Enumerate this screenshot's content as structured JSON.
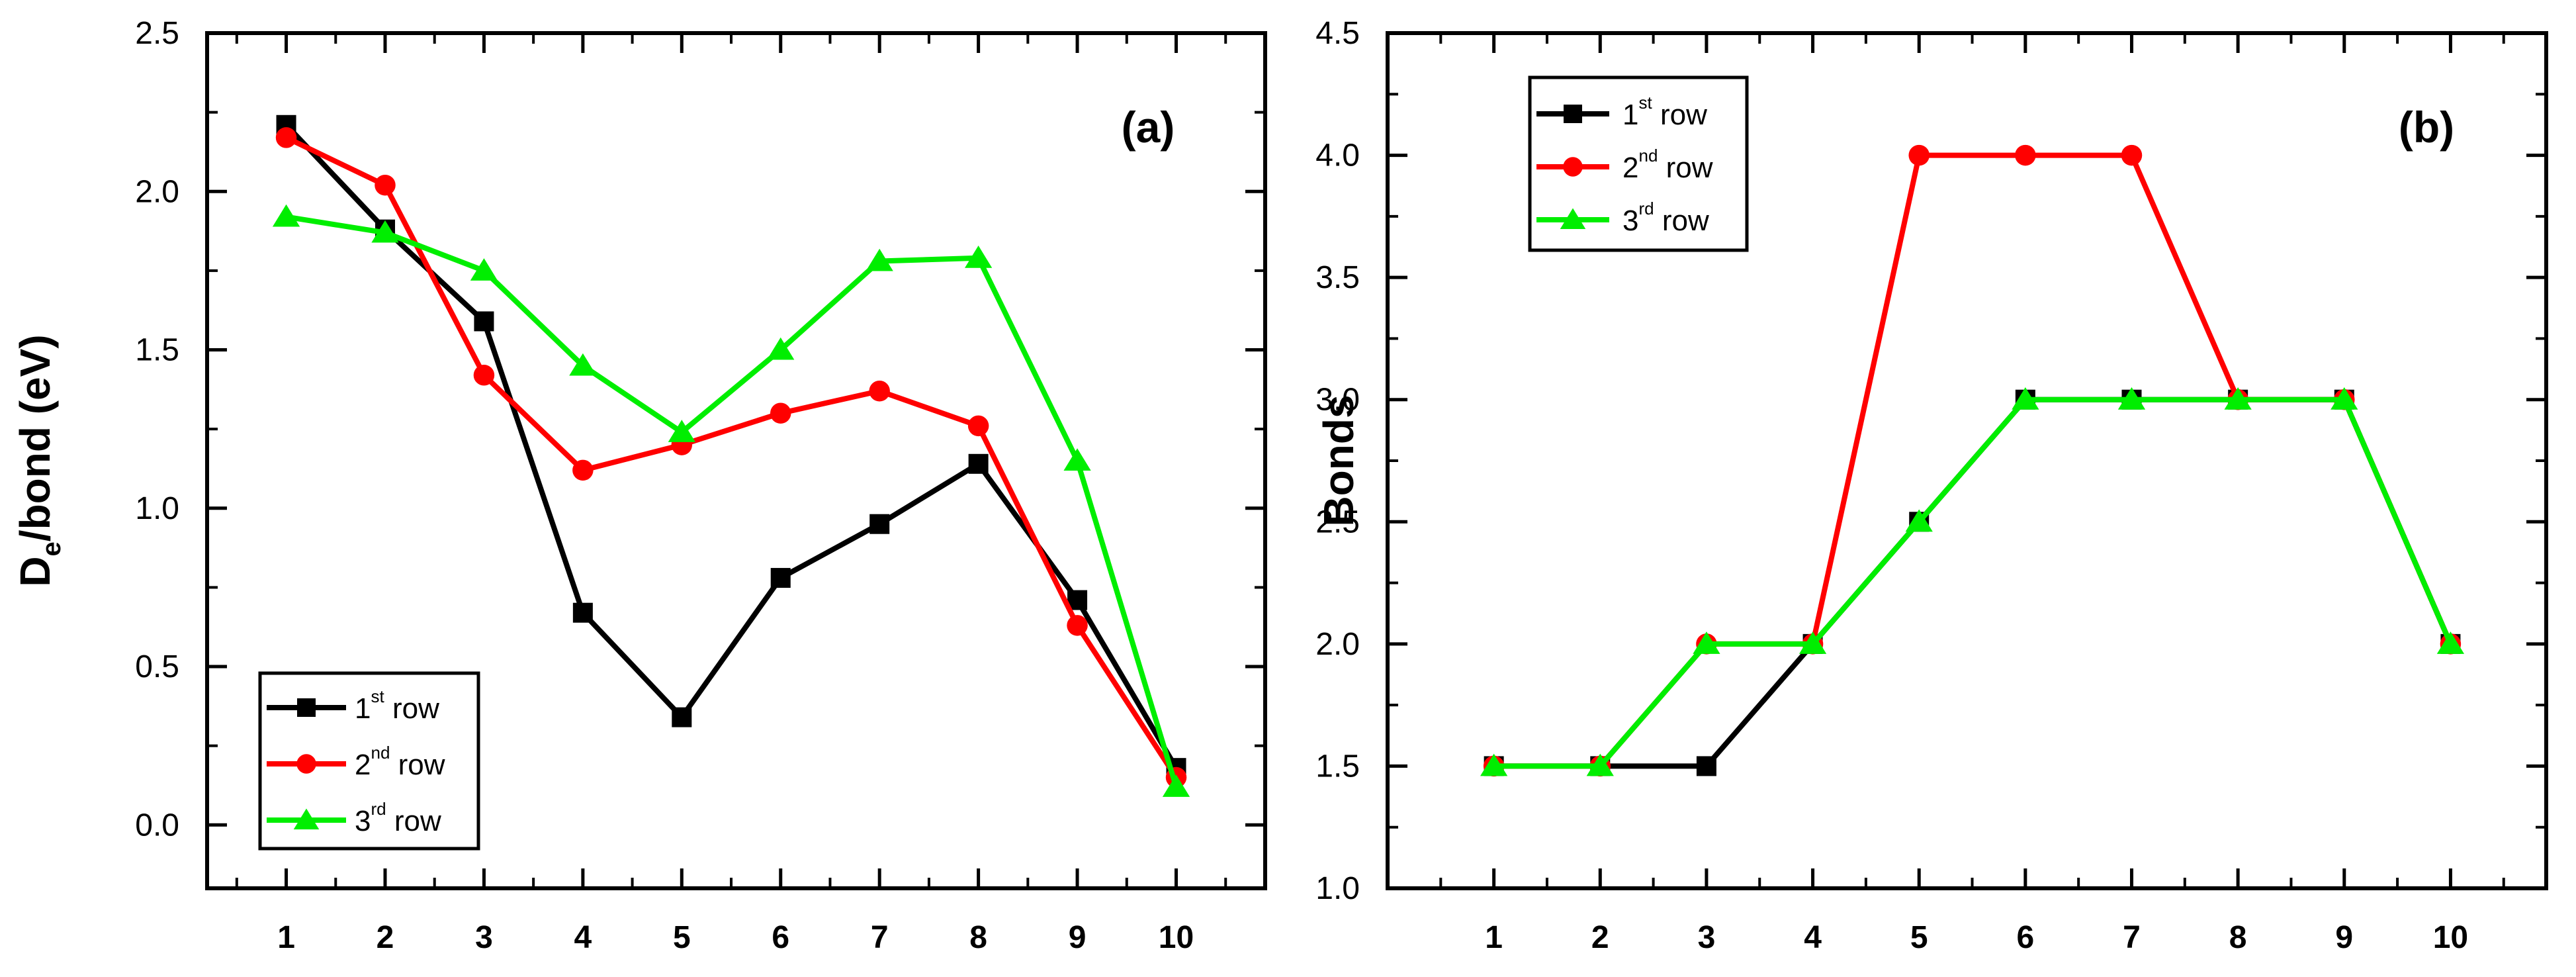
{
  "chart_data": [
    {
      "id": "a",
      "type": "line",
      "panel_label": "(a)",
      "title": "",
      "xlabel": "",
      "ylabel_main": "D",
      "ylabel_sub": "e",
      "ylabel_rest": "/bond (eV)",
      "x": [
        1,
        2,
        3,
        4,
        5,
        6,
        7,
        8,
        9,
        10
      ],
      "xlim": [
        0.2,
        10.9
      ],
      "ylim": [
        -0.2,
        2.5
      ],
      "xticks": [
        1,
        2,
        3,
        4,
        5,
        6,
        7,
        8,
        9,
        10
      ],
      "xtick_labels": [
        "1",
        "2",
        "3",
        "4",
        "5",
        "6",
        "7",
        "8",
        "9",
        "10"
      ],
      "yticks": [
        0.0,
        0.5,
        1.0,
        1.5,
        2.0,
        2.5
      ],
      "ytick_labels": [
        "0.0",
        "0.5",
        "1.0",
        "1.5",
        "2.0",
        "2.5"
      ],
      "legend_position": "bottom-left",
      "series": [
        {
          "name": "1st row",
          "label_main": "1",
          "label_sup": "st",
          "label_rest": " row",
          "color": "#000000",
          "marker": "square",
          "values": [
            2.21,
            1.88,
            1.59,
            0.67,
            0.34,
            0.78,
            0.95,
            1.14,
            0.71,
            0.18
          ]
        },
        {
          "name": "2nd row",
          "label_main": "2",
          "label_sup": "nd",
          "label_rest": " row",
          "color": "#ff0000",
          "marker": "circle",
          "values": [
            2.17,
            2.02,
            1.42,
            1.12,
            1.2,
            1.3,
            1.37,
            1.26,
            0.63,
            0.15
          ]
        },
        {
          "name": "3rd row",
          "label_main": "3",
          "label_sup": "rd",
          "label_rest": " row",
          "color": "#00ee00",
          "marker": "triangle",
          "values": [
            1.92,
            1.87,
            1.75,
            1.45,
            1.24,
            1.5,
            1.78,
            1.79,
            1.15,
            0.12
          ]
        }
      ]
    },
    {
      "id": "b",
      "type": "line",
      "panel_label": "(b)",
      "title": "",
      "xlabel": "",
      "ylabel_main": "Bonds",
      "ylabel_sub": "",
      "ylabel_rest": "",
      "x": [
        1,
        2,
        3,
        4,
        5,
        6,
        7,
        8,
        9,
        10
      ],
      "xlim": [
        0.0,
        10.9
      ],
      "ylim": [
        1.0,
        4.5
      ],
      "xticks": [
        1,
        2,
        3,
        4,
        5,
        6,
        7,
        8,
        9,
        10
      ],
      "xtick_labels": [
        "1",
        "2",
        "3",
        "4",
        "5",
        "6",
        "7",
        "8",
        "9",
        "10"
      ],
      "yticks": [
        1.0,
        1.5,
        2.0,
        2.5,
        3.0,
        3.5,
        4.0,
        4.5
      ],
      "ytick_labels": [
        "1.0",
        "1.5",
        "2.0",
        "2.5",
        "3.0",
        "3.5",
        "4.0",
        "4.5"
      ],
      "legend_position": "top-left",
      "series": [
        {
          "name": "1st row",
          "label_main": "1",
          "label_sup": "st",
          "label_rest": " row",
          "color": "#000000",
          "marker": "square",
          "values": [
            1.5,
            1.5,
            1.5,
            2.0,
            2.5,
            3.0,
            3.0,
            3.0,
            3.0,
            2.0
          ]
        },
        {
          "name": "2nd row",
          "label_main": "2",
          "label_sup": "nd",
          "label_rest": " row",
          "color": "#ff0000",
          "marker": "circle",
          "values": [
            1.5,
            1.5,
            2.0,
            2.0,
            4.0,
            4.0,
            4.0,
            3.0,
            3.0,
            2.0
          ]
        },
        {
          "name": "3rd row",
          "label_main": "3",
          "label_sup": "rd",
          "label_rest": " row",
          "color": "#00ee00",
          "marker": "triangle",
          "values": [
            1.5,
            1.5,
            2.0,
            2.0,
            2.5,
            3.0,
            3.0,
            3.0,
            3.0,
            2.0
          ]
        }
      ]
    }
  ]
}
